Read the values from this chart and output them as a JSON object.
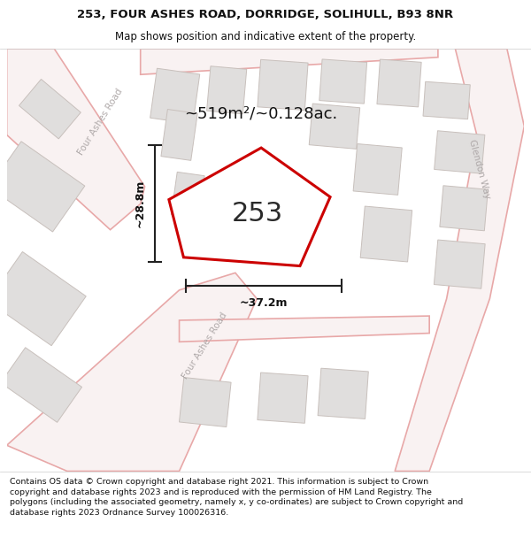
{
  "title_line1": "253, FOUR ASHES ROAD, DORRIDGE, SOLIHULL, B93 8NR",
  "title_line2": "Map shows position and indicative extent of the property.",
  "copyright_text": "Contains OS data © Crown copyright and database right 2021. This information is subject to Crown copyright and database rights 2023 and is reproduced with the permission of HM Land Registry. The polygons (including the associated geometry, namely x, y co-ordinates) are subject to Crown copyright and database rights 2023 Ordnance Survey 100026316.",
  "property_number": "253",
  "area_label": "~519m²/~0.128ac.",
  "width_label": "~37.2m",
  "height_label": "~28.8m",
  "map_bg": "#f2f0ef",
  "road_outline_color": "#e8a8a8",
  "road_fill_color": "#f9f2f2",
  "building_color": "#e0dedd",
  "building_edge": "#c8c0bc",
  "property_edge_color": "#cc0000",
  "property_fill": "#ffffff",
  "street_label_color": "#b0aaaa",
  "dim_line_color": "#222222",
  "title_color": "#111111",
  "annotation_color": "#111111",
  "title_fontsize": 9.5,
  "subtitle_fontsize": 8.5,
  "copyright_fontsize": 6.8,
  "area_fontsize": 13,
  "street_fontsize": 7.5,
  "number_fontsize": 22,
  "dim_fontsize": 9
}
